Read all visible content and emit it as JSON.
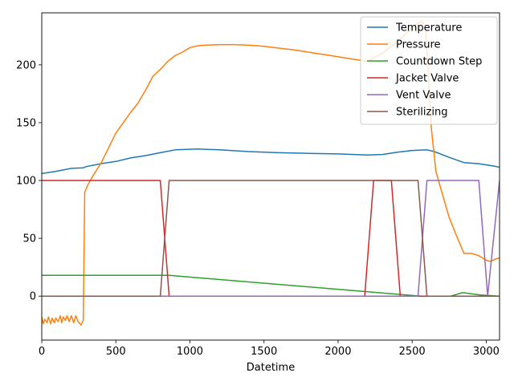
{
  "chart_data": {
    "type": "line",
    "title": "",
    "xlabel": "Datetime",
    "ylabel": "",
    "xlim": [
      0,
      3090
    ],
    "ylim": [
      -38,
      245
    ],
    "x_ticks": [
      0,
      500,
      1000,
      1500,
      2000,
      2500,
      3000
    ],
    "y_ticks": [
      0,
      50,
      100,
      150,
      200
    ],
    "grid": false,
    "legend_position": "top-right",
    "series": [
      {
        "name": "Temperature",
        "color": "#1f77b4",
        "points": [
          [
            0,
            106
          ],
          [
            100,
            108
          ],
          [
            200,
            110.5
          ],
          [
            280,
            111
          ],
          [
            300,
            112
          ],
          [
            400,
            114.5
          ],
          [
            500,
            116.5
          ],
          [
            600,
            119.5
          ],
          [
            700,
            121.5
          ],
          [
            800,
            124
          ],
          [
            900,
            126.5
          ],
          [
            1000,
            127
          ],
          [
            1050,
            127.2
          ],
          [
            1200,
            126.5
          ],
          [
            1400,
            125
          ],
          [
            1600,
            124
          ],
          [
            1800,
            123.5
          ],
          [
            2000,
            123
          ],
          [
            2200,
            122
          ],
          [
            2300,
            122.5
          ],
          [
            2400,
            124.5
          ],
          [
            2500,
            126
          ],
          [
            2600,
            126.5
          ],
          [
            2650,
            125
          ],
          [
            2750,
            120
          ],
          [
            2850,
            115.5
          ],
          [
            2950,
            114.5
          ],
          [
            3050,
            112.5
          ],
          [
            3090,
            111.5
          ]
        ]
      },
      {
        "name": "Pressure",
        "color": "#ff7f0e",
        "points": [
          [
            0,
            -18
          ],
          [
            10,
            -24
          ],
          [
            20,
            -20
          ],
          [
            35,
            -23
          ],
          [
            45,
            -18
          ],
          [
            60,
            -24
          ],
          [
            70,
            -19
          ],
          [
            85,
            -23
          ],
          [
            95,
            -19
          ],
          [
            110,
            -22
          ],
          [
            125,
            -17
          ],
          [
            135,
            -23
          ],
          [
            145,
            -18
          ],
          [
            160,
            -21
          ],
          [
            170,
            -17
          ],
          [
            185,
            -22
          ],
          [
            200,
            -17
          ],
          [
            215,
            -23
          ],
          [
            230,
            -17
          ],
          [
            245,
            -22
          ],
          [
            265,
            -25
          ],
          [
            280,
            -21
          ],
          [
            290,
            90
          ],
          [
            310,
            96
          ],
          [
            350,
            105
          ],
          [
            400,
            115
          ],
          [
            450,
            128
          ],
          [
            500,
            141
          ],
          [
            550,
            150
          ],
          [
            600,
            159
          ],
          [
            650,
            167
          ],
          [
            700,
            178
          ],
          [
            750,
            190
          ],
          [
            800,
            196
          ],
          [
            850,
            203
          ],
          [
            900,
            208
          ],
          [
            950,
            211
          ],
          [
            1000,
            215
          ],
          [
            1050,
            216.5
          ],
          [
            1100,
            217
          ],
          [
            1200,
            217.5
          ],
          [
            1300,
            217.5
          ],
          [
            1400,
            217
          ],
          [
            1500,
            216
          ],
          [
            1600,
            214.5
          ],
          [
            1700,
            213
          ],
          [
            1800,
            211
          ],
          [
            1900,
            209
          ],
          [
            2000,
            207
          ],
          [
            2100,
            205
          ],
          [
            2200,
            203
          ],
          [
            2300,
            210
          ],
          [
            2400,
            220
          ],
          [
            2450,
            226
          ],
          [
            2500,
            232
          ],
          [
            2560,
            238
          ],
          [
            2590,
            234
          ],
          [
            2610,
            190
          ],
          [
            2630,
            145
          ],
          [
            2660,
            108
          ],
          [
            2700,
            90
          ],
          [
            2750,
            68
          ],
          [
            2800,
            52
          ],
          [
            2850,
            37
          ],
          [
            2900,
            37
          ],
          [
            2950,
            35
          ],
          [
            3000,
            31
          ],
          [
            3030,
            30
          ],
          [
            3060,
            32
          ],
          [
            3090,
            33
          ]
        ]
      },
      {
        "name": "Countdown Step",
        "color": "#2ca02c",
        "points": [
          [
            0,
            18
          ],
          [
            860,
            18
          ],
          [
            2560,
            0
          ],
          [
            2760,
            0
          ],
          [
            2840,
            3
          ],
          [
            2900,
            2
          ],
          [
            2960,
            1
          ],
          [
            3090,
            0
          ]
        ]
      },
      {
        "name": "Jacket Valve",
        "color": "#d62728",
        "points": [
          [
            0,
            100
          ],
          [
            800,
            100
          ],
          [
            860,
            0
          ],
          [
            2180,
            0
          ],
          [
            2240,
            100
          ],
          [
            2360,
            100
          ],
          [
            2420,
            0
          ],
          [
            3090,
            0
          ]
        ]
      },
      {
        "name": "Vent Valve",
        "color": "#9467bd",
        "points": [
          [
            0,
            0
          ],
          [
            2540,
            0
          ],
          [
            2600,
            100
          ],
          [
            2950,
            100
          ],
          [
            3010,
            0
          ],
          [
            3090,
            100
          ]
        ]
      },
      {
        "name": "Sterilizing",
        "color": "#8c564b",
        "points": [
          [
            0,
            0
          ],
          [
            800,
            0
          ],
          [
            860,
            100
          ],
          [
            2540,
            100
          ],
          [
            2600,
            0
          ],
          [
            3090,
            0
          ]
        ]
      }
    ]
  }
}
